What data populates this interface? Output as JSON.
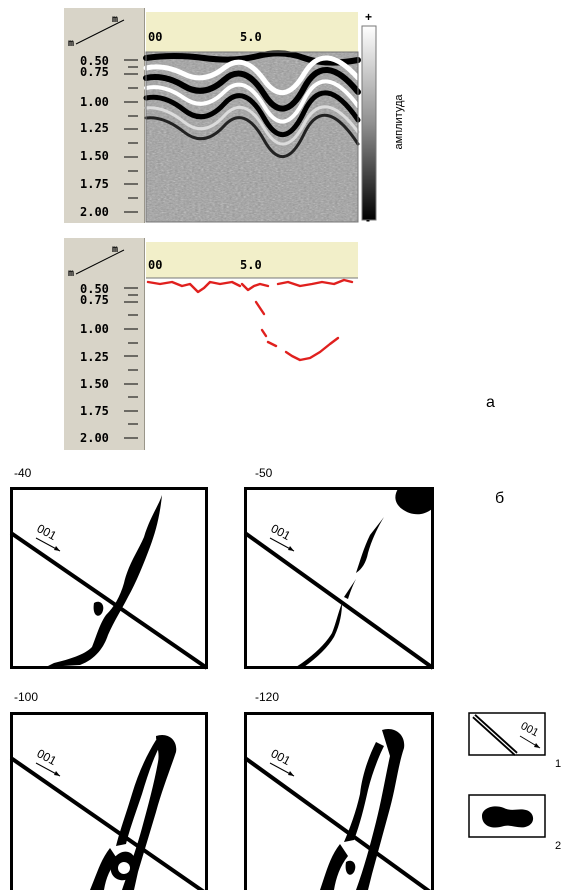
{
  "radargram_top": {
    "unit_x": "m",
    "unit_y": "m",
    "x_ticks": [
      "00",
      "5.0"
    ],
    "y_ticks": [
      "0.50",
      "0.75",
      "1.00",
      "1.25",
      "1.50",
      "1.75",
      "2.00"
    ],
    "colorbar": {
      "plus": "+",
      "minus": "-",
      "label": "амплитуда"
    }
  },
  "radargram_bottom": {
    "unit_x": "m",
    "unit_y": "m",
    "x_ticks": [
      "00",
      "5.0"
    ],
    "y_ticks": [
      "0.50",
      "0.75",
      "1.00",
      "1.25",
      "1.50",
      "1.75",
      "2.00"
    ],
    "trace_color": "#e0201e"
  },
  "panel_letters": {
    "a": "а",
    "b": "б"
  },
  "depth_maps": [
    {
      "depth_label": "-40",
      "direction_label": "001"
    },
    {
      "depth_label": "-50",
      "direction_label": "001"
    },
    {
      "depth_label": "-100",
      "direction_label": "001"
    },
    {
      "depth_label": "-120",
      "direction_label": "001"
    }
  ],
  "legend": [
    {
      "number": "1",
      "direction_label": "001"
    },
    {
      "number": "2"
    }
  ]
}
